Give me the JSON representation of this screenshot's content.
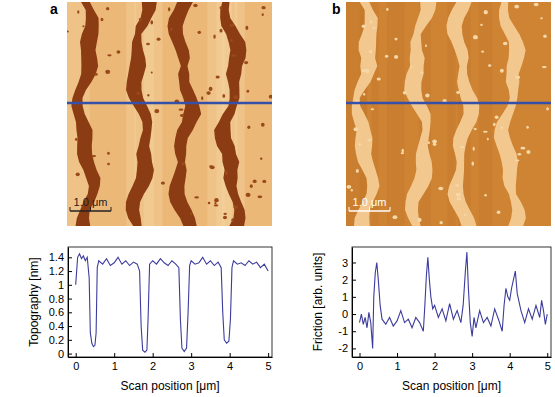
{
  "chart_data": [
    {
      "type": "line",
      "title": "a",
      "annotations": [
        "1.0 μm"
      ],
      "x_label": "Scan position [μm]",
      "y_label": "Topography [nm]",
      "x": [
        0,
        0.05,
        0.1,
        0.15,
        0.2,
        0.25,
        0.3,
        0.35,
        0.38,
        0.42,
        0.46,
        0.5,
        0.53,
        0.56,
        0.6,
        0.7,
        0.8,
        0.9,
        1.0,
        1.1,
        1.2,
        1.3,
        1.4,
        1.5,
        1.6,
        1.66,
        1.7,
        1.74,
        1.8,
        1.85,
        1.88,
        1.92,
        2.0,
        2.1,
        2.2,
        2.3,
        2.4,
        2.5,
        2.6,
        2.68,
        2.72,
        2.76,
        2.82,
        2.88,
        2.92,
        2.96,
        3.0,
        3.1,
        3.2,
        3.3,
        3.4,
        3.5,
        3.6,
        3.7,
        3.78,
        3.82,
        3.86,
        3.92,
        3.98,
        4.02,
        4.06,
        4.1,
        4.2,
        4.3,
        4.4,
        4.5,
        4.6,
        4.7,
        4.8,
        4.9,
        5.0
      ],
      "series": [
        {
          "name": "Topography",
          "color": "#3c3c9c",
          "values": [
            1.0,
            1.4,
            1.45,
            1.38,
            1.42,
            1.35,
            1.4,
            1.1,
            0.3,
            0.15,
            0.1,
            0.12,
            0.3,
            1.25,
            1.35,
            1.3,
            1.38,
            1.28,
            1.32,
            1.4,
            1.3,
            1.35,
            1.28,
            1.33,
            1.3,
            1.2,
            0.4,
            0.05,
            0.02,
            0.05,
            0.5,
            1.3,
            1.35,
            1.3,
            1.38,
            1.32,
            1.28,
            1.35,
            1.3,
            1.25,
            0.5,
            0.08,
            0.03,
            0.08,
            0.6,
            1.28,
            1.35,
            1.3,
            1.32,
            1.4,
            1.3,
            1.35,
            1.28,
            1.33,
            1.25,
            0.6,
            0.2,
            0.15,
            0.18,
            0.5,
            1.25,
            1.35,
            1.3,
            1.32,
            1.28,
            1.35,
            1.3,
            1.33,
            1.25,
            1.3,
            1.2
          ]
        }
      ],
      "xlim": [
        -0.2,
        5.1
      ],
      "xticks": [
        0,
        1,
        2,
        3,
        4,
        5
      ],
      "ylim": [
        -0.05,
        1.55
      ],
      "yticks": [
        0,
        0.2,
        0.4,
        0.6,
        0.8,
        1,
        1.2,
        1.4
      ]
    },
    {
      "type": "line",
      "title": "b",
      "annotations": [
        "1.0 μm"
      ],
      "x_label": "Scan position [μm]",
      "y_label": "Friction [arb. units]",
      "x": [
        0,
        0.05,
        0.1,
        0.15,
        0.2,
        0.25,
        0.3,
        0.35,
        0.38,
        0.42,
        0.46,
        0.5,
        0.55,
        0.6,
        0.7,
        0.8,
        0.9,
        1.0,
        1.1,
        1.2,
        1.3,
        1.4,
        1.5,
        1.6,
        1.7,
        1.74,
        1.78,
        1.82,
        1.86,
        1.9,
        1.95,
        2.0,
        2.1,
        2.2,
        2.3,
        2.4,
        2.5,
        2.6,
        2.7,
        2.76,
        2.82,
        2.86,
        2.9,
        2.95,
        3.0,
        3.05,
        3.1,
        3.2,
        3.3,
        3.4,
        3.5,
        3.6,
        3.7,
        3.8,
        3.85,
        3.9,
        3.95,
        4.0,
        4.05,
        4.1,
        4.15,
        4.2,
        4.3,
        4.4,
        4.5,
        4.6,
        4.7,
        4.8,
        4.85,
        4.9,
        4.95,
        5.0
      ],
      "series": [
        {
          "name": "Friction",
          "color": "#3c3c9c",
          "values": [
            -0.5,
            0,
            -0.6,
            -0.2,
            -0.8,
            0.1,
            -0.5,
            -2.0,
            1.0,
            2.4,
            3.0,
            2.0,
            0.5,
            -0.3,
            -0.6,
            -0.2,
            -0.7,
            -0.4,
            0.2,
            -0.5,
            -0.3,
            -0.8,
            -0.2,
            -0.5,
            -1.0,
            0.5,
            2.2,
            3.3,
            2.0,
            1.0,
            0.3,
            0.5,
            -0.2,
            0.3,
            -0.4,
            0.6,
            -0.3,
            0.2,
            -0.5,
            0.5,
            2.5,
            3.6,
            1.5,
            -0.5,
            -1.3,
            -0.2,
            -0.8,
            0.2,
            -0.5,
            -0.2,
            -0.7,
            0.3,
            -0.3,
            -1.0,
            0.5,
            1.5,
            1.0,
            0.8,
            1.5,
            2.0,
            2.5,
            1.2,
            0.2,
            -0.5,
            0.3,
            -0.3,
            0.5,
            -0.2,
            0.8,
            0.2,
            -0.6,
            0
          ]
        }
      ],
      "xlim": [
        -0.2,
        5.1
      ],
      "xticks": [
        0,
        1,
        2,
        3,
        4,
        5
      ],
      "ylim": [
        -2.5,
        3.9
      ],
      "yticks": [
        -2,
        -1,
        0,
        1,
        2,
        3
      ]
    }
  ]
}
